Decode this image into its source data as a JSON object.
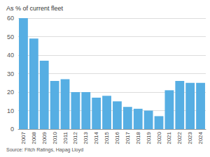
{
  "chart_data": {
    "type": "bar",
    "ylabel": "As % of current fleet",
    "source": "Source: Fitch Ratings, Hapag Lloyd",
    "categories": [
      "2007",
      "2008",
      "2009",
      "2010",
      "2011",
      "2012",
      "2013",
      "2014",
      "2015",
      "2016",
      "2017",
      "2018",
      "2019",
      "2020",
      "2021",
      "2022",
      "2023",
      "2024"
    ],
    "values": [
      60,
      49,
      37,
      26,
      27,
      20,
      20,
      17,
      18,
      15,
      12,
      11,
      10,
      7,
      21,
      26,
      25,
      25
    ],
    "color": "#56aee3",
    "ylim": [
      0,
      60
    ],
    "yticks": [
      0,
      10,
      20,
      30,
      40,
      50,
      60
    ],
    "grid": true
  }
}
